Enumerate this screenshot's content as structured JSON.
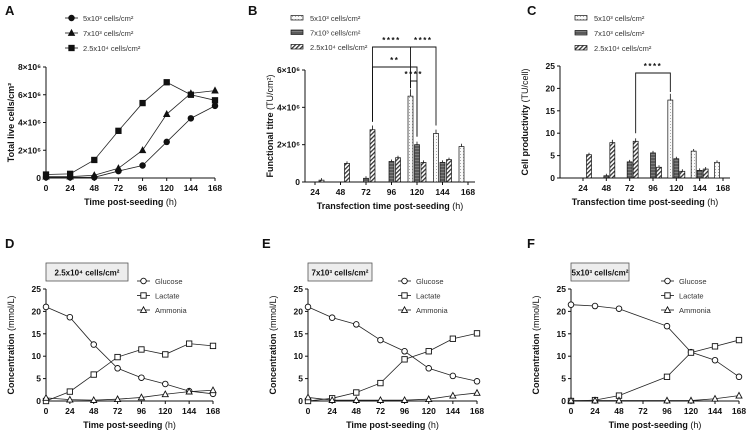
{
  "chart_data": [
    {
      "panel": "A",
      "type": "line",
      "xlabel": "Time post-seeding",
      "xunit": "(h)",
      "ylabel": "Total live cells/cm²",
      "yunit": "",
      "xticks": [
        0,
        24,
        48,
        72,
        96,
        120,
        144,
        168
      ],
      "ylim": [
        0,
        8000000
      ],
      "yticks": [
        0,
        2000000,
        4000000,
        6000000,
        8000000
      ],
      "ytick_labels": [
        "0",
        "2×10⁶",
        "4×10⁶",
        "6×10⁶",
        "8×10⁶"
      ],
      "x": [
        0,
        24,
        48,
        72,
        96,
        120,
        144,
        168
      ],
      "series": [
        {
          "name": "5x10³ cells/cm²",
          "marker": "circle",
          "values": [
            50000,
            50000,
            50000,
            500000,
            900000,
            2600000,
            4300000,
            5200000
          ]
        },
        {
          "name": "7x10³ cells/cm²",
          "marker": "triangle",
          "values": [
            100000,
            100000,
            200000,
            700000,
            2000000,
            4600000,
            6100000,
            6300000
          ]
        },
        {
          "name": "2.5x10⁴ cells/cm²",
          "marker": "square",
          "values": [
            250000,
            300000,
            1300000,
            3400000,
            5400000,
            6900000,
            6000000,
            5600000
          ]
        }
      ]
    },
    {
      "panel": "B",
      "type": "bar",
      "xlabel": "Transfection time post-seeding",
      "xunit": "(h)",
      "ylabel": "Functional titre",
      "yunit": "(TU/cm²)",
      "categories": [
        24,
        48,
        72,
        96,
        120,
        144,
        168
      ],
      "ylim": [
        0,
        6000000
      ],
      "yticks": [
        0,
        2000000,
        4000000,
        6000000
      ],
      "ytick_labels": [
        "0",
        "2×10⁶",
        "4×10⁶",
        "6×10⁶"
      ],
      "series": [
        {
          "name": "5x10³ cells/cm²",
          "values": [
            null,
            null,
            null,
            null,
            4600000,
            2600000,
            1900000
          ]
        },
        {
          "name": "7x10³ cells/cm²",
          "values": [
            null,
            null,
            200000,
            1100000,
            2000000,
            1050000,
            null
          ]
        },
        {
          "name": "2.5x10⁴ cells/cm²",
          "values": [
            100000,
            1000000,
            2800000,
            1300000,
            1050000,
            1200000,
            null
          ]
        }
      ],
      "annotations": [
        {
          "label": "****",
          "from": [
            72,
            2
          ],
          "to": [
            144,
            0
          ],
          "mid": [
            120,
            0
          ],
          "level": 0
        },
        {
          "label": "**",
          "from": [
            72,
            2
          ],
          "to": [
            120,
            1
          ],
          "level": 1
        },
        {
          "label": "****",
          "from": [
            120,
            0
          ],
          "to": [
            120,
            1
          ],
          "level": 2
        }
      ]
    },
    {
      "panel": "C",
      "type": "bar",
      "xlabel": "Transfection time post-seeding",
      "xunit": "(h)",
      "ylabel": "Cell productivity",
      "yunit": "(TU/cell)",
      "categories": [
        24,
        48,
        72,
        96,
        120,
        144,
        168
      ],
      "ylim": [
        0,
        25
      ],
      "yticks": [
        0,
        5,
        10,
        15,
        20,
        25
      ],
      "ytick_labels": [
        "0",
        "5",
        "10",
        "15",
        "20",
        "25"
      ],
      "series": [
        {
          "name": "5x10³ cells/cm²",
          "values": [
            null,
            null,
            null,
            null,
            17.4,
            6.0,
            3.5
          ]
        },
        {
          "name": "7x10³ cells/cm²",
          "values": [
            null,
            0.5,
            3.6,
            5.6,
            4.3,
            1.7,
            null
          ]
        },
        {
          "name": "2.5x10⁴ cells/cm²",
          "values": [
            5.2,
            7.9,
            8.2,
            2.4,
            1.5,
            2.0,
            null
          ]
        }
      ],
      "annotations": [
        {
          "label": "****",
          "from": [
            72,
            2
          ],
          "to": [
            120,
            0
          ],
          "level": 0
        }
      ]
    },
    {
      "panel": "D",
      "type": "line",
      "title": "2.5x10⁴ cells/cm²",
      "xlabel": "Time post-seeding",
      "xunit": "(h)",
      "ylabel": "Concentration",
      "yunit": "(mmol/L)",
      "xticks": [
        0,
        24,
        48,
        72,
        96,
        120,
        144,
        168
      ],
      "ylim": [
        0,
        25
      ],
      "yticks": [
        0,
        5,
        10,
        15,
        20,
        25
      ],
      "ytick_labels": [
        "0",
        "5",
        "10",
        "15",
        "20",
        "25"
      ],
      "x": [
        0,
        24,
        48,
        72,
        96,
        120,
        144,
        168
      ],
      "series": [
        {
          "name": "Glucose",
          "marker": "circle",
          "values": [
            21,
            18.7,
            12.6,
            7.3,
            5.2,
            3.8,
            2.2,
            1.6
          ]
        },
        {
          "name": "Lactate",
          "marker": "square",
          "values": [
            0,
            2.1,
            5.9,
            9.8,
            11.5,
            10.4,
            12.8,
            12.3
          ]
        },
        {
          "name": "Ammonia",
          "marker": "triangle",
          "values": [
            0.7,
            0.3,
            0.2,
            0.4,
            0.8,
            1.5,
            2.1,
            2.4
          ]
        }
      ]
    },
    {
      "panel": "E",
      "type": "line",
      "title": "7x10³ cells/cm²",
      "xlabel": "Time post-seeding",
      "xunit": "(h)",
      "ylabel": "Concentration",
      "yunit": "(mmol/L)",
      "xticks": [
        0,
        24,
        48,
        72,
        96,
        120,
        144,
        168
      ],
      "ylim": [
        0,
        25
      ],
      "yticks": [
        0,
        5,
        10,
        15,
        20,
        25
      ],
      "ytick_labels": [
        "0",
        "5",
        "10",
        "15",
        "20",
        "25"
      ],
      "x": [
        0,
        24,
        48,
        72,
        96,
        120,
        144,
        168
      ],
      "series": [
        {
          "name": "Glucose",
          "marker": "circle",
          "values": [
            21,
            18.6,
            17.1,
            13.6,
            11.1,
            7.3,
            5.6,
            4.4
          ]
        },
        {
          "name": "Lactate",
          "marker": "square",
          "values": [
            0,
            0.6,
            1.9,
            4.0,
            9.3,
            11.1,
            13.9,
            15.1
          ]
        },
        {
          "name": "Ammonia",
          "marker": "triangle",
          "values": [
            0.8,
            0.2,
            0.2,
            0.2,
            0.2,
            0.4,
            1.2,
            1.8
          ]
        }
      ]
    },
    {
      "panel": "F",
      "type": "line",
      "title": "5x10³ cells/cm²",
      "xlabel": "Time post-seeding",
      "xunit": "(h)",
      "ylabel": "Concentration",
      "yunit": "(mmol/L)",
      "xticks": [
        0,
        24,
        48,
        72,
        96,
        120,
        144,
        168
      ],
      "ylim": [
        0,
        25
      ],
      "yticks": [
        0,
        5,
        10,
        15,
        20,
        25
      ],
      "ytick_labels": [
        "0",
        "5",
        "10",
        "15",
        "20",
        "25"
      ],
      "x": [
        0,
        24,
        48,
        96,
        120,
        144,
        168
      ],
      "series": [
        {
          "name": "Glucose",
          "marker": "circle",
          "values": [
            21.5,
            21.2,
            20.6,
            16.7,
            10.9,
            9.1,
            5.4
          ]
        },
        {
          "name": "Lactate",
          "marker": "square",
          "values": [
            0,
            0.2,
            1.2,
            5.4,
            10.8,
            12.2,
            13.6
          ]
        },
        {
          "name": "Ammonia",
          "marker": "triangle",
          "values": [
            0.1,
            0.1,
            0.1,
            0.1,
            0.1,
            0.5,
            1.2
          ]
        }
      ]
    }
  ]
}
